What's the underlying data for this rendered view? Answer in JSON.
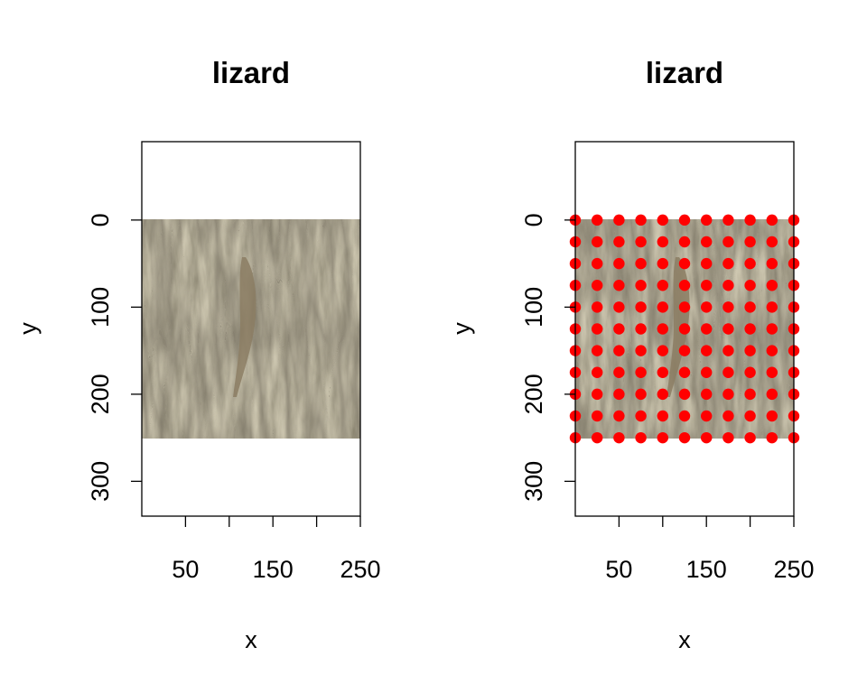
{
  "chart_data": [
    {
      "type": "scatter",
      "title": "lizard",
      "xlabel": "x",
      "ylabel": "y",
      "xlim": [
        0,
        250
      ],
      "ylim": [
        340,
        -90
      ],
      "x_ticks": [
        50,
        100,
        150,
        200,
        250
      ],
      "x_tick_labels": [
        "50",
        "",
        "150",
        "",
        "250"
      ],
      "y_ticks": [
        0,
        100,
        200,
        300
      ],
      "y_tick_labels": [
        "0",
        "100",
        "200",
        "300"
      ],
      "image": {
        "content": "tree bark with a lizard",
        "extent_x": [
          0,
          250
        ],
        "extent_y": [
          0,
          250
        ]
      },
      "points": []
    },
    {
      "type": "scatter",
      "title": "lizard",
      "xlabel": "x",
      "ylabel": "y",
      "xlim": [
        0,
        250
      ],
      "ylim": [
        340,
        -90
      ],
      "x_ticks": [
        50,
        100,
        150,
        200,
        250
      ],
      "x_tick_labels": [
        "50",
        "",
        "150",
        "",
        "250"
      ],
      "y_ticks": [
        0,
        100,
        200,
        300
      ],
      "y_tick_labels": [
        "0",
        "100",
        "200",
        "300"
      ],
      "image": {
        "content": "tree bark with a lizard",
        "extent_x": [
          0,
          250
        ],
        "extent_y": [
          0,
          250
        ]
      },
      "points": {
        "color": "#ff0000",
        "x": [
          0,
          25,
          50,
          75,
          100,
          125,
          150,
          175,
          200,
          225,
          250
        ],
        "y": [
          0,
          25,
          50,
          75,
          100,
          125,
          150,
          175,
          200,
          225,
          250
        ],
        "grid": true
      }
    }
  ]
}
